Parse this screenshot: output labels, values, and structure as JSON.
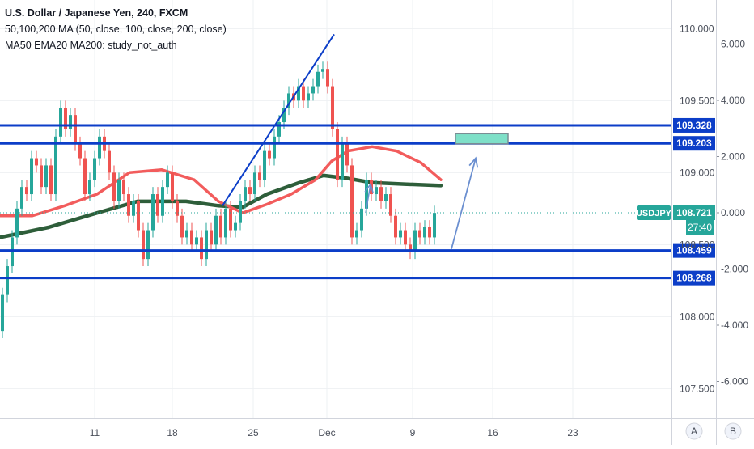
{
  "header": {
    "title": "U.S. Dollar / Japanese Yen, 240, FXCM",
    "indicator_1": "50,100,200 MA (50, close, 100, close, 200, close)",
    "indicator_2": "MA50 EMA20 MA200: study_not_auth"
  },
  "chart_data": {
    "type": "line",
    "symbol": "USDJPY",
    "x_tick_labels": [
      "11",
      "18",
      "25",
      "Dec",
      "9",
      "16",
      "23"
    ],
    "price_axis": {
      "ticks": [
        107.5,
        108.0,
        108.5,
        109.0,
        109.5,
        110.0
      ],
      "tick_labels": [
        "107.500",
        "108.000",
        "108.500",
        "109.000",
        "109.500",
        "110.000"
      ],
      "range": [
        107.2,
        110.1
      ]
    },
    "percent_axis": {
      "ticks": [
        -6,
        -4,
        -2,
        0,
        2,
        4,
        6
      ],
      "tick_labels": [
        "-6.000",
        "-4.000",
        "-2.000",
        "0.000",
        "2.000",
        "4.000",
        "6.000"
      ]
    },
    "current_price": {
      "value": 108.721,
      "label": "108.721",
      "countdown": "27:40",
      "color": "#26a69a"
    },
    "levels": [
      {
        "value": 109.328,
        "label": "109.328",
        "color": "#0c3ec8"
      },
      {
        "value": 109.203,
        "label": "109.203",
        "color": "#0c3ec8"
      },
      {
        "value": 108.459,
        "label": "108.459",
        "color": "#0c3ec8"
      },
      {
        "value": 108.268,
        "label": "108.268",
        "color": "#0c3ec8"
      }
    ],
    "price_path": [
      [
        0,
        107.9
      ],
      [
        6,
        108.15
      ],
      [
        12,
        108.35
      ],
      [
        18,
        108.55
      ],
      [
        24,
        108.75
      ],
      [
        30,
        108.9
      ],
      [
        36,
        108.85
      ],
      [
        42,
        109.1
      ],
      [
        48,
        109.05
      ],
      [
        54,
        108.9
      ],
      [
        60,
        109.05
      ],
      [
        66,
        108.85
      ],
      [
        72,
        109.25
      ],
      [
        78,
        109.45
      ],
      [
        84,
        109.3
      ],
      [
        90,
        109.4
      ],
      [
        96,
        109.2
      ],
      [
        102,
        109.1
      ],
      [
        108,
        108.85
      ],
      [
        114,
        108.95
      ],
      [
        120,
        109.1
      ],
      [
        126,
        109.25
      ],
      [
        132,
        109.15
      ],
      [
        138,
        109.0
      ],
      [
        144,
        108.8
      ],
      [
        150,
        108.95
      ],
      [
        156,
        108.85
      ],
      [
        162,
        108.7
      ],
      [
        168,
        108.8
      ],
      [
        174,
        108.6
      ],
      [
        180,
        108.4
      ],
      [
        186,
        108.6
      ],
      [
        192,
        108.85
      ],
      [
        198,
        108.7
      ],
      [
        204,
        108.9
      ],
      [
        210,
        109.0
      ],
      [
        216,
        108.8
      ],
      [
        222,
        108.7
      ],
      [
        228,
        108.55
      ],
      [
        234,
        108.6
      ],
      [
        240,
        108.5
      ],
      [
        246,
        108.55
      ],
      [
        252,
        108.4
      ],
      [
        258,
        108.6
      ],
      [
        264,
        108.5
      ],
      [
        270,
        108.7
      ],
      [
        276,
        108.55
      ],
      [
        282,
        108.75
      ],
      [
        288,
        108.6
      ],
      [
        294,
        108.65
      ],
      [
        300,
        108.8
      ],
      [
        306,
        108.9
      ],
      [
        312,
        108.85
      ],
      [
        318,
        109.0
      ],
      [
        324,
        108.95
      ],
      [
        330,
        109.15
      ],
      [
        336,
        109.1
      ],
      [
        342,
        109.25
      ],
      [
        348,
        109.35
      ],
      [
        354,
        109.45
      ],
      [
        360,
        109.55
      ],
      [
        366,
        109.5
      ],
      [
        372,
        109.6
      ],
      [
        378,
        109.5
      ],
      [
        384,
        109.55
      ],
      [
        390,
        109.6
      ],
      [
        396,
        109.7
      ],
      [
        402,
        109.72
      ],
      [
        408,
        109.6
      ],
      [
        414,
        109.3
      ],
      [
        420,
        108.95
      ],
      [
        426,
        109.2
      ],
      [
        432,
        109.05
      ],
      [
        438,
        108.55
      ],
      [
        444,
        108.6
      ],
      [
        450,
        108.75
      ],
      [
        456,
        108.95
      ],
      [
        462,
        108.85
      ],
      [
        468,
        108.9
      ],
      [
        474,
        108.8
      ],
      [
        480,
        108.85
      ],
      [
        486,
        108.7
      ],
      [
        492,
        108.55
      ],
      [
        498,
        108.6
      ],
      [
        504,
        108.5
      ],
      [
        510,
        108.45
      ],
      [
        516,
        108.6
      ],
      [
        522,
        108.55
      ],
      [
        528,
        108.62
      ],
      [
        534,
        108.55
      ],
      [
        540,
        108.72
      ]
    ],
    "ma_red": [
      [
        0,
        108.7
      ],
      [
        40,
        108.7
      ],
      [
        80,
        108.77
      ],
      [
        120,
        108.85
      ],
      [
        160,
        109.0
      ],
      [
        200,
        109.02
      ],
      [
        240,
        108.95
      ],
      [
        270,
        108.8
      ],
      [
        300,
        108.72
      ],
      [
        330,
        108.78
      ],
      [
        360,
        108.85
      ],
      [
        390,
        108.95
      ],
      [
        410,
        109.08
      ],
      [
        430,
        109.15
      ],
      [
        460,
        109.18
      ],
      [
        490,
        109.15
      ],
      [
        520,
        109.07
      ],
      [
        545,
        108.95
      ]
    ],
    "ma_green": [
      [
        0,
        108.55
      ],
      [
        60,
        108.62
      ],
      [
        120,
        108.72
      ],
      [
        170,
        108.8
      ],
      [
        230,
        108.8
      ],
      [
        270,
        108.77
      ],
      [
        300,
        108.76
      ],
      [
        330,
        108.85
      ],
      [
        370,
        108.93
      ],
      [
        400,
        108.98
      ],
      [
        430,
        108.96
      ],
      [
        460,
        108.93
      ],
      [
        500,
        108.92
      ],
      [
        545,
        108.91
      ]
    ],
    "trendline": [
      [
        275,
        108.77
      ],
      [
        413,
        109.96
      ]
    ],
    "forecast_arrow": [
      [
        558,
        108.47
      ],
      [
        588,
        109.1
      ]
    ],
    "small_arrow": [
      [
        452,
        108.72
      ],
      [
        458,
        108.92
      ]
    ],
    "target_box": {
      "x0": 563,
      "x1": 628,
      "y0": 109.27,
      "y1": 109.2,
      "fill": "#7ee0c8",
      "border": "#7a8d94"
    },
    "scale_buttons": [
      "A",
      "B"
    ]
  }
}
